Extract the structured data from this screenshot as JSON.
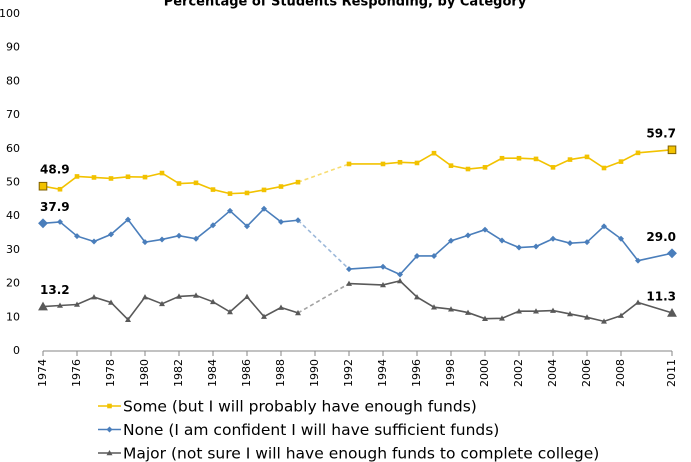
{
  "chart_data": {
    "type": "line",
    "title": "Percentage of Students Responding, by Category",
    "x": [
      1974,
      1975,
      1976,
      1977,
      1978,
      1979,
      1980,
      1981,
      1982,
      1983,
      1984,
      1985,
      1986,
      1987,
      1988,
      1989,
      1990,
      1991,
      1992,
      1994,
      1995,
      1996,
      1997,
      1998,
      1999,
      2000,
      2001,
      2002,
      2003,
      2004,
      2005,
      2006,
      2007,
      2008,
      2009,
      2011
    ],
    "xlim": [
      1974,
      2011
    ],
    "xticks": [
      1974,
      1976,
      1978,
      1980,
      1982,
      1984,
      1986,
      1988,
      1990,
      1992,
      1994,
      1996,
      1998,
      2000,
      2002,
      2004,
      2006,
      2008,
      2011
    ],
    "ylim": [
      0,
      100
    ],
    "yticks": [
      0,
      10,
      20,
      30,
      40,
      50,
      60,
      70,
      80,
      90,
      100
    ],
    "grid": false,
    "series": [
      {
        "name": "Some (but I will probably have enough funds)",
        "color": "#f2c200",
        "marker": "square",
        "values": [
          48.9,
          48.0,
          51.8,
          51.5,
          51.2,
          51.7,
          51.6,
          52.8,
          49.7,
          49.9,
          47.9,
          46.7,
          46.9,
          47.8,
          48.8,
          50.1,
          null,
          null,
          55.5,
          55.5,
          56.0,
          55.8,
          58.7,
          55.0,
          54.0,
          54.5,
          57.2,
          57.2,
          57.0,
          54.5,
          56.8,
          57.6,
          54.3,
          56.2,
          58.8,
          59.7
        ],
        "value_labels": [
          "48.9",
          null,
          null,
          null,
          null,
          null,
          null,
          null,
          null,
          null,
          null,
          null,
          null,
          null,
          null,
          null,
          null,
          null,
          null,
          null,
          null,
          null,
          null,
          null,
          null,
          null,
          null,
          null,
          null,
          null,
          null,
          null,
          null,
          null,
          null,
          "59.7"
        ]
      },
      {
        "name": "None (I am confident I will have sufficient funds)",
        "color": "#4a7ebb",
        "marker": "diamond",
        "values": [
          37.9,
          38.3,
          34.1,
          32.5,
          34.6,
          39.0,
          32.3,
          33.1,
          34.2,
          33.3,
          37.3,
          41.6,
          37.0,
          42.2,
          38.3,
          38.8,
          null,
          null,
          24.3,
          25.0,
          22.7,
          28.2,
          28.2,
          32.7,
          34.3,
          36.0,
          32.8,
          30.7,
          31.0,
          33.3,
          32.0,
          32.3,
          37.0,
          33.3,
          26.8,
          29.0
        ],
        "value_labels": [
          "37.9",
          null,
          null,
          null,
          null,
          null,
          null,
          null,
          null,
          null,
          null,
          null,
          null,
          null,
          null,
          null,
          null,
          null,
          null,
          null,
          null,
          null,
          null,
          null,
          null,
          null,
          null,
          null,
          null,
          null,
          null,
          null,
          null,
          null,
          null,
          "29.0"
        ]
      },
      {
        "name": "Major (not sure I will have enough funds to complete college)",
        "color": "#595959",
        "marker": "triangle",
        "values": [
          13.2,
          13.5,
          13.8,
          16.0,
          14.4,
          9.3,
          16.0,
          14.0,
          16.2,
          16.5,
          14.6,
          11.6,
          16.1,
          10.2,
          12.9,
          11.3,
          null,
          null,
          20.0,
          19.6,
          20.8,
          16.0,
          13.0,
          12.4,
          11.4,
          9.6,
          9.7,
          11.8,
          11.8,
          12.0,
          11.0,
          10.0,
          8.8,
          10.5,
          14.4,
          11.3
        ],
        "value_labels": [
          "13.2",
          null,
          null,
          null,
          null,
          null,
          null,
          null,
          null,
          null,
          null,
          null,
          null,
          null,
          null,
          null,
          null,
          null,
          null,
          null,
          null,
          null,
          null,
          null,
          null,
          null,
          null,
          null,
          null,
          null,
          null,
          null,
          null,
          null,
          null,
          "11.3"
        ]
      }
    ]
  }
}
